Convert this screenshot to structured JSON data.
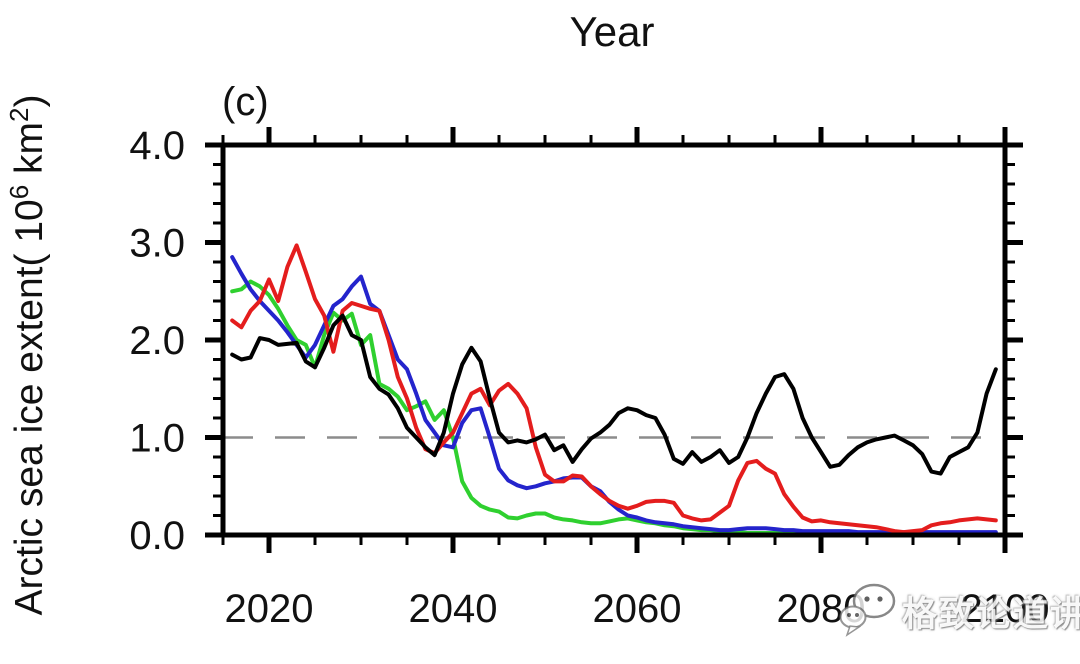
{
  "chart": {
    "title": "Year",
    "panel_label": "(c)",
    "ylabel_parts": {
      "prefix": "Arctic sea ice extent( 10",
      "sup1": "6",
      "mid": " km",
      "sup2": "2",
      "suffix": ")"
    }
  },
  "watermark": {
    "icon": "wechat-logo",
    "text": "格致论道讲坛"
  },
  "colors": {
    "black_series": "#000000",
    "red_series": "#e41d1d",
    "blue_series": "#2424cc",
    "green_series": "#2fd02f",
    "reference_line": "#8c8c8c",
    "axis": "#000000"
  },
  "chart_data": {
    "type": "line",
    "title": "Year",
    "panel_label": "(c)",
    "ylabel": "Arctic sea ice extent( 10⁶ km²)",
    "xlabel": "",
    "xlim": [
      2015,
      2100
    ],
    "ylim": [
      0.0,
      4.0
    ],
    "grid": false,
    "legend": "none",
    "reference_line_y": 1.0,
    "x_major_ticks": [
      2020,
      2040,
      2060,
      2080,
      2100
    ],
    "x_tick_labels": [
      "2020",
      "2040",
      "2060",
      "2080",
      "2100"
    ],
    "x_minor_step": 5,
    "y_major_ticks": [
      0.0,
      1.0,
      2.0,
      3.0,
      4.0
    ],
    "y_tick_labels": [
      "0.0",
      "1.0",
      "2.0",
      "3.0",
      "4.0"
    ],
    "y_minor_step": 0.2,
    "years": [
      2016,
      2017,
      2018,
      2019,
      2020,
      2021,
      2022,
      2023,
      2024,
      2025,
      2026,
      2027,
      2028,
      2029,
      2030,
      2031,
      2032,
      2033,
      2034,
      2035,
      2036,
      2037,
      2038,
      2039,
      2040,
      2041,
      2042,
      2043,
      2044,
      2045,
      2046,
      2047,
      2048,
      2049,
      2050,
      2051,
      2052,
      2053,
      2054,
      2055,
      2056,
      2057,
      2058,
      2059,
      2060,
      2061,
      2062,
      2063,
      2064,
      2065,
      2066,
      2067,
      2068,
      2069,
      2070,
      2071,
      2072,
      2073,
      2074,
      2075,
      2076,
      2077,
      2078,
      2079,
      2080,
      2081,
      2082,
      2083,
      2084,
      2085,
      2086,
      2087,
      2088,
      2089,
      2090,
      2091,
      2092,
      2093,
      2094,
      2095,
      2096,
      2097,
      2098,
      2099
    ],
    "series": [
      {
        "name": "green",
        "color": "#2fd02f",
        "values": [
          2.5,
          2.52,
          2.6,
          2.55,
          2.46,
          2.32,
          2.15,
          2.0,
          1.95,
          1.72,
          2.05,
          2.28,
          2.2,
          2.27,
          1.95,
          2.05,
          1.55,
          1.5,
          1.42,
          1.28,
          1.32,
          1.37,
          1.18,
          1.28,
          1.0,
          0.55,
          0.38,
          0.3,
          0.26,
          0.24,
          0.18,
          0.17,
          0.2,
          0.22,
          0.22,
          0.18,
          0.16,
          0.15,
          0.13,
          0.12,
          0.12,
          0.14,
          0.16,
          0.17,
          0.15,
          0.13,
          0.12,
          0.1,
          0.09,
          0.07,
          0.06,
          0.05,
          0.05,
          0.04,
          0.04,
          0.03,
          0.02,
          0.02,
          0.02,
          0.02,
          0.02,
          0.02,
          0.02,
          0.02,
          0.02,
          0.02,
          0.02,
          0.02,
          0.02,
          0.02,
          0.02,
          0.02,
          0.02,
          0.02,
          0.02,
          0.02,
          0.02,
          0.02,
          0.02,
          0.02,
          0.02,
          0.02,
          0.02,
          0.02
        ]
      },
      {
        "name": "blue",
        "color": "#2424cc",
        "values": [
          2.85,
          2.68,
          2.52,
          2.4,
          2.3,
          2.2,
          2.08,
          1.95,
          1.82,
          1.95,
          2.15,
          2.35,
          2.42,
          2.55,
          2.65,
          2.37,
          2.3,
          2.05,
          1.8,
          1.7,
          1.45,
          1.18,
          1.05,
          0.92,
          0.9,
          1.15,
          1.28,
          1.3,
          1.0,
          0.68,
          0.56,
          0.51,
          0.48,
          0.5,
          0.53,
          0.55,
          0.58,
          0.59,
          0.59,
          0.5,
          0.45,
          0.34,
          0.26,
          0.2,
          0.18,
          0.15,
          0.13,
          0.12,
          0.11,
          0.09,
          0.08,
          0.07,
          0.06,
          0.05,
          0.05,
          0.06,
          0.07,
          0.07,
          0.07,
          0.06,
          0.05,
          0.05,
          0.04,
          0.04,
          0.04,
          0.04,
          0.04,
          0.04,
          0.03,
          0.03,
          0.03,
          0.03,
          0.03,
          0.03,
          0.03,
          0.03,
          0.03,
          0.03,
          0.03,
          0.03,
          0.03,
          0.03,
          0.03,
          0.03
        ]
      },
      {
        "name": "red",
        "color": "#e41d1d",
        "values": [
          2.2,
          2.13,
          2.3,
          2.4,
          2.62,
          2.4,
          2.75,
          2.97,
          2.7,
          2.42,
          2.25,
          1.88,
          2.3,
          2.38,
          2.35,
          2.32,
          2.3,
          2.0,
          1.62,
          1.4,
          1.1,
          0.88,
          0.84,
          0.95,
          1.05,
          1.25,
          1.45,
          1.5,
          1.33,
          1.48,
          1.55,
          1.45,
          1.3,
          0.9,
          0.62,
          0.55,
          0.55,
          0.61,
          0.6,
          0.5,
          0.42,
          0.35,
          0.3,
          0.27,
          0.3,
          0.34,
          0.35,
          0.35,
          0.33,
          0.2,
          0.17,
          0.15,
          0.16,
          0.23,
          0.3,
          0.56,
          0.74,
          0.76,
          0.68,
          0.63,
          0.42,
          0.29,
          0.18,
          0.14,
          0.15,
          0.13,
          0.12,
          0.11,
          0.1,
          0.09,
          0.08,
          0.06,
          0.04,
          0.03,
          0.04,
          0.05,
          0.1,
          0.12,
          0.13,
          0.15,
          0.16,
          0.17,
          0.16,
          0.15
        ]
      },
      {
        "name": "black",
        "color": "#000000",
        "values": [
          1.85,
          1.8,
          1.82,
          2.02,
          2.0,
          1.95,
          1.96,
          1.97,
          1.78,
          1.72,
          1.92,
          2.15,
          2.25,
          2.05,
          2.0,
          1.62,
          1.5,
          1.44,
          1.3,
          1.1,
          1.0,
          0.9,
          0.82,
          1.05,
          1.45,
          1.75,
          1.92,
          1.78,
          1.4,
          1.05,
          0.95,
          0.97,
          0.95,
          0.98,
          1.03,
          0.87,
          0.92,
          0.75,
          0.88,
          0.99,
          1.05,
          1.13,
          1.25,
          1.3,
          1.28,
          1.23,
          1.2,
          1.03,
          0.78,
          0.73,
          0.85,
          0.75,
          0.8,
          0.87,
          0.74,
          0.8,
          1.0,
          1.25,
          1.45,
          1.62,
          1.65,
          1.5,
          1.2,
          1.0,
          0.85,
          0.7,
          0.72,
          0.82,
          0.9,
          0.95,
          0.98,
          1.0,
          1.02,
          0.97,
          0.92,
          0.83,
          0.65,
          0.63,
          0.8,
          0.85,
          0.9,
          1.05,
          1.45,
          1.7
        ]
      }
    ]
  }
}
